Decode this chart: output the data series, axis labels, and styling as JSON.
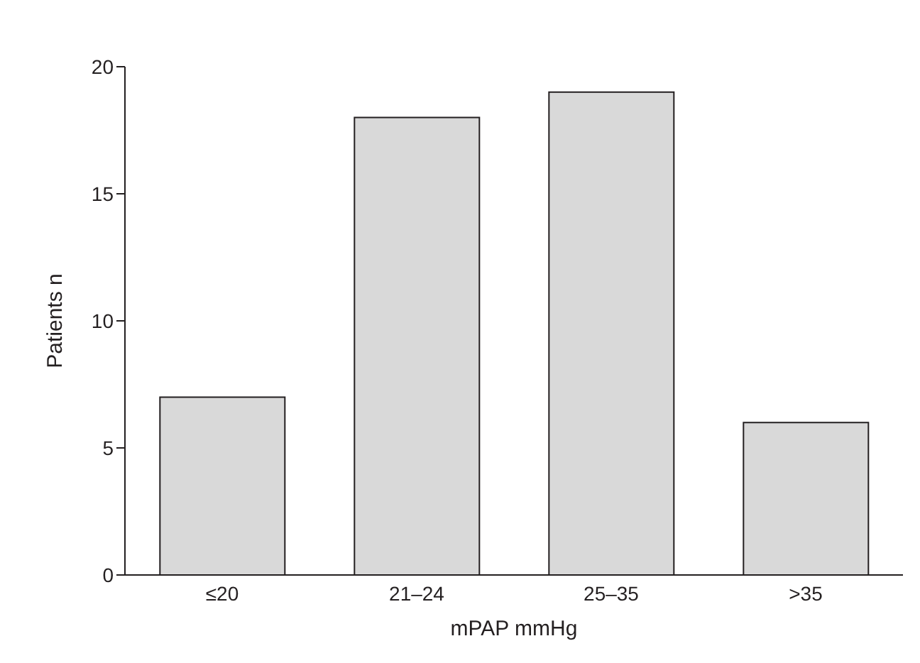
{
  "chart_data": {
    "type": "bar",
    "xlabel": "mPAP mmHg",
    "ylabel": "Patients n",
    "categories": [
      "≤20",
      "21–24",
      "25–35",
      ">35"
    ],
    "values": [
      7,
      18,
      19,
      6
    ],
    "color": "#d9d9d9",
    "ylim": [
      0,
      20
    ],
    "yticks": [
      0,
      5,
      10,
      15,
      20
    ],
    "grid": false,
    "legend": false
  }
}
